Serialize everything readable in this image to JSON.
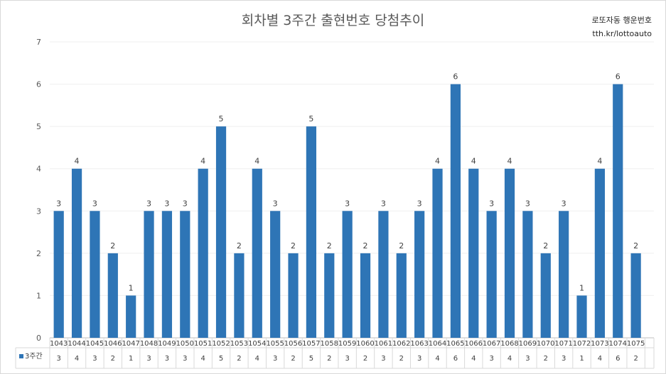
{
  "header": {
    "title": "회차별 3주간 출현번호 당첨추이",
    "brand_line1": "로또자동 행운번호",
    "brand_line2": "tth.kr/lottoauto"
  },
  "chart_data": {
    "type": "bar",
    "title": "회차별 3주간 출현번호 당첨추이",
    "xlabel": "",
    "ylabel": "",
    "ylim": [
      0,
      7
    ],
    "yticks": [
      0,
      1,
      2,
      3,
      4,
      5,
      6,
      7
    ],
    "grid": true,
    "legend_position": "data-table",
    "bar_color": "#2e75b6",
    "categories": [
      "1043",
      "1044",
      "1045",
      "1046",
      "1047",
      "1048",
      "1049",
      "1050",
      "1051",
      "1052",
      "1053",
      "1054",
      "1055",
      "1056",
      "1057",
      "1058",
      "1059",
      "1060",
      "1061",
      "1062",
      "1063",
      "1064",
      "1065",
      "1066",
      "1067",
      "1068",
      "1069",
      "1070",
      "1071",
      "1072",
      "1073",
      "1074",
      "1075"
    ],
    "series": [
      {
        "name": "3주간",
        "values": [
          3,
          4,
          3,
          2,
          1,
          3,
          3,
          3,
          4,
          5,
          2,
          4,
          3,
          2,
          5,
          2,
          3,
          2,
          3,
          2,
          3,
          4,
          6,
          4,
          3,
          4,
          3,
          2,
          3,
          1,
          4,
          6,
          2
        ]
      }
    ]
  }
}
